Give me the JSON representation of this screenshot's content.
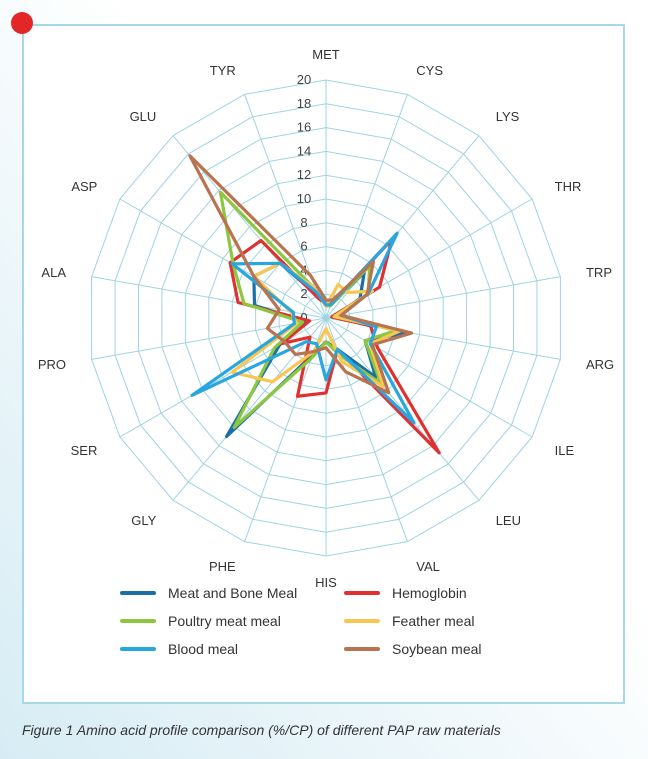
{
  "caption": "Figure 1 Amino acid profile comparison (%/CP) of different PAP raw materials",
  "chart_data": {
    "type": "radar",
    "categories": [
      "MET",
      "CYS",
      "LYS",
      "THR",
      "TRP",
      "ARG",
      "ILE",
      "LEU",
      "VAL",
      "HIS",
      "PHE",
      "GLY",
      "SER",
      "PRO",
      "ALA",
      "ASP",
      "GLU",
      "TYR"
    ],
    "rlim": [
      0,
      20
    ],
    "ticks": [
      0,
      2,
      4,
      6,
      8,
      10,
      12,
      14,
      16,
      18,
      20
    ],
    "grid": true,
    "legend_position": "bottom",
    "series": [
      {
        "name": "Meat and Bone Meal",
        "color": "#1b6fa8",
        "values": [
          1.3,
          1.2,
          5.0,
          3.3,
          0.8,
          7.0,
          3.8,
          6.5,
          2.8,
          2.0,
          3.3,
          13.0,
          4.5,
          1.8,
          6.1,
          7.0,
          6.0,
          2.0
        ]
      },
      {
        "name": "Hemoglobin",
        "color": "#e03131",
        "values": [
          1.2,
          1.3,
          8.6,
          5.2,
          0.5,
          3.8,
          5.0,
          14.8,
          2.8,
          6.3,
          7.0,
          2.1,
          4.3,
          1.4,
          7.5,
          9.3,
          8.5,
          1.7
        ]
      },
      {
        "name": "Poultry meat meal",
        "color": "#8dc63f",
        "values": [
          1.0,
          1.1,
          5.7,
          4.1,
          0.7,
          6.0,
          3.8,
          7.2,
          3.3,
          2.0,
          3.6,
          12.0,
          5.0,
          2.0,
          7.0,
          9.0,
          13.8,
          2.5
        ]
      },
      {
        "name": "Feather meal",
        "color": "#f9c74f",
        "values": [
          1.0,
          3.0,
          2.8,
          4.5,
          0.7,
          6.3,
          4.3,
          7.5,
          3.9,
          0.9,
          3.0,
          7.0,
          9.1,
          2.5,
          3.0,
          7.0,
          6.0,
          2.6
        ]
      },
      {
        "name": "Blood meal",
        "color": "#2aa6df",
        "values": [
          1.1,
          1.2,
          9.3,
          4.1,
          1.3,
          4.3,
          4.3,
          11.5,
          2.8,
          5.2,
          2.3,
          2.6,
          13.0,
          2.7,
          2.8,
          9.1,
          6.0,
          2.3
        ]
      },
      {
        "name": "Soybean meal",
        "color": "#b87350",
        "values": [
          1.5,
          1.6,
          6.2,
          4.0,
          1.3,
          7.3,
          4.5,
          8.2,
          4.8,
          2.5,
          3.0,
          4.0,
          4.0,
          5.0,
          4.0,
          7.0,
          17.8,
          3.8
        ]
      }
    ]
  },
  "legend_order": [
    {
      "name": "Meat and Bone Meal",
      "color": "#1b6fa8"
    },
    {
      "name": "Hemoglobin",
      "color": "#e03131"
    },
    {
      "name": "Poultry meat meal",
      "color": "#8dc63f"
    },
    {
      "name": "Feather meal",
      "color": "#f9c74f"
    },
    {
      "name": "Blood meal",
      "color": "#2aa6df"
    },
    {
      "name": "Soybean meal",
      "color": "#b87350"
    }
  ]
}
